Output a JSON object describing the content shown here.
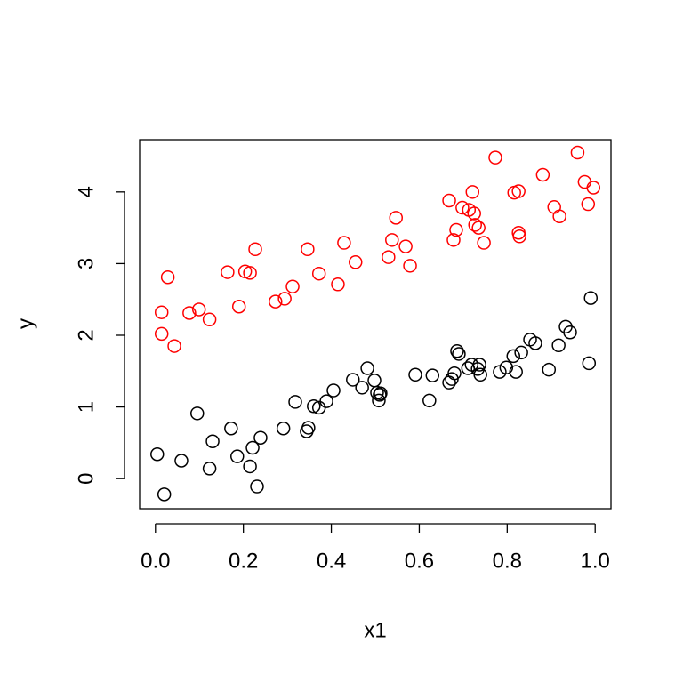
{
  "chart_data": {
    "type": "scatter",
    "x_label": "x1",
    "y_label": "y",
    "xlim": [
      -0.036,
      1.036
    ],
    "ylim": [
      -0.42,
      4.73
    ],
    "xticks": [
      {
        "value": 0,
        "label": "0.0"
      },
      0.2,
      0.4,
      0.6,
      0.8,
      {
        "value": 1,
        "label": "1.0"
      }
    ],
    "yticks": [
      0,
      1,
      2,
      3,
      4
    ],
    "series": [
      {
        "color": "#000000",
        "x": [
          0.004,
          0.02,
          0.059,
          0.095,
          0.123,
          0.13,
          0.172,
          0.186,
          0.215,
          0.221,
          0.231,
          0.239,
          0.291,
          0.318,
          0.344,
          0.348,
          0.36,
          0.372,
          0.389,
          0.405,
          0.449,
          0.47,
          0.482,
          0.498,
          0.504,
          0.51,
          0.512,
          0.508,
          0.591,
          0.623,
          0.63,
          0.668,
          0.674,
          0.68,
          0.686,
          0.69,
          0.711,
          0.719,
          0.733,
          0.737,
          0.739,
          0.783,
          0.798,
          0.814,
          0.82,
          0.832,
          0.852,
          0.864,
          0.895,
          0.917,
          0.933,
          0.943,
          0.986,
          0.99
        ],
        "values": [
          0.34,
          -0.22,
          0.25,
          0.91,
          0.14,
          0.52,
          0.7,
          0.31,
          0.17,
          0.43,
          -0.11,
          0.57,
          0.7,
          1.07,
          0.66,
          0.71,
          1.01,
          0.99,
          1.08,
          1.23,
          1.38,
          1.27,
          1.54,
          1.37,
          1.2,
          1.17,
          1.19,
          1.09,
          1.45,
          1.09,
          1.44,
          1.34,
          1.39,
          1.47,
          1.78,
          1.74,
          1.54,
          1.59,
          1.53,
          1.59,
          1.45,
          1.49,
          1.55,
          1.71,
          1.49,
          1.76,
          1.94,
          1.89,
          1.52,
          1.86,
          2.12,
          2.04,
          1.61,
          2.52
        ]
      },
      {
        "color": "#ff0000",
        "x": [
          0.014,
          0.014,
          0.028,
          0.043,
          0.077,
          0.099,
          0.123,
          0.164,
          0.19,
          0.204,
          0.215,
          0.227,
          0.273,
          0.294,
          0.312,
          0.346,
          0.372,
          0.415,
          0.429,
          0.455,
          0.53,
          0.538,
          0.547,
          0.569,
          0.579,
          0.668,
          0.678,
          0.684,
          0.698,
          0.713,
          0.721,
          0.725,
          0.727,
          0.735,
          0.747,
          0.773,
          0.816,
          0.826,
          0.826,
          0.828,
          0.881,
          0.907,
          0.919,
          0.96,
          0.976,
          0.984,
          0.996
        ],
        "values": [
          2.02,
          2.32,
          2.81,
          1.85,
          2.31,
          2.36,
          2.22,
          2.88,
          2.4,
          2.89,
          2.87,
          3.2,
          2.47,
          2.51,
          2.68,
          3.2,
          2.86,
          2.71,
          3.29,
          3.02,
          3.09,
          3.33,
          3.64,
          3.24,
          2.97,
          3.88,
          3.33,
          3.47,
          3.78,
          3.75,
          4.0,
          3.7,
          3.54,
          3.5,
          3.29,
          4.48,
          3.99,
          4.01,
          3.43,
          3.38,
          4.24,
          3.79,
          3.66,
          4.55,
          4.14,
          3.83,
          4.06
        ]
      }
    ]
  }
}
